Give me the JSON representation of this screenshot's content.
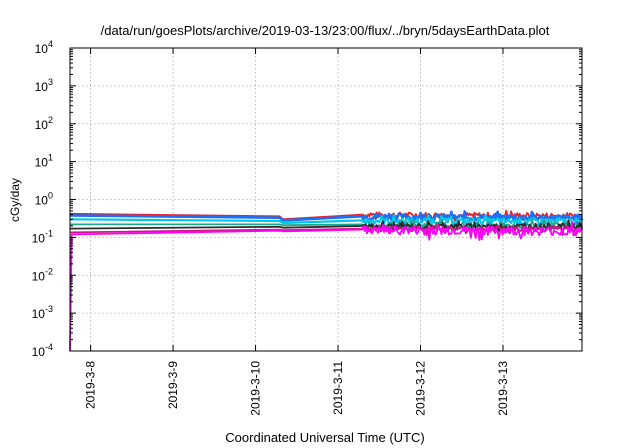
{
  "chart_data": {
    "type": "line",
    "title": "/data/run/goesPlots/archive/2019-03-13/23:00/flux/../bryn/5daysEarthData.plot",
    "xlabel": "Coordinated Universal Time (UTC)",
    "ylabel": "cGy/day",
    "y_scale": "log",
    "ylim": [
      0.0001,
      10000
    ],
    "yticks": [
      {
        "value": 0.0001,
        "base": "10",
        "exp": "-4"
      },
      {
        "value": 0.001,
        "base": "10",
        "exp": "-3"
      },
      {
        "value": 0.01,
        "base": "10",
        "exp": "-2"
      },
      {
        "value": 0.1,
        "base": "10",
        "exp": "-1"
      },
      {
        "value": 1,
        "base": "10",
        "exp": "0"
      },
      {
        "value": 10,
        "base": "10",
        "exp": "1"
      },
      {
        "value": 100,
        "base": "10",
        "exp": "2"
      },
      {
        "value": 1000,
        "base": "10",
        "exp": "3"
      },
      {
        "value": 10000,
        "base": "10",
        "exp": "4"
      }
    ],
    "xlim": [
      "2019-03-07T18:00",
      "2019-03-13T23:00"
    ],
    "xticks": [
      "2019-3-8",
      "2019-3-9",
      "2019-3-10",
      "2019-3-11",
      "2019-3-12",
      "2019-3-13"
    ],
    "grid": true,
    "legend": "none",
    "series": [
      {
        "color": "#e8212a",
        "x": [
          "2019-03-07T18:00",
          "2019-03-10T07:00",
          "2019-03-10T08:00",
          "2019-03-11T07:00",
          "2019-03-13T23:00"
        ],
        "values": [
          0.42,
          0.36,
          0.3,
          0.4,
          0.38
        ]
      },
      {
        "color": "#1e6ff2",
        "x": [
          "2019-03-07T18:00",
          "2019-03-10T07:00",
          "2019-03-10T08:00",
          "2019-03-11T07:00",
          "2019-03-13T23:00"
        ],
        "values": [
          0.38,
          0.33,
          0.28,
          0.36,
          0.33
        ]
      },
      {
        "color": "#00c8e6",
        "x": [
          "2019-03-07T18:00",
          "2019-03-10T07:00",
          "2019-03-10T08:00",
          "2019-03-11T07:00",
          "2019-03-13T23:00"
        ],
        "values": [
          0.3,
          0.27,
          0.24,
          0.28,
          0.27
        ]
      },
      {
        "color": "#1fa58e",
        "x": [
          "2019-03-07T18:00",
          "2019-03-10T07:00",
          "2019-03-10T08:00",
          "2019-03-11T07:00",
          "2019-03-13T23:00"
        ],
        "values": [
          0.22,
          0.22,
          0.21,
          0.22,
          0.21
        ]
      },
      {
        "color": "#2b2b2b",
        "x": [
          "2019-03-07T18:00",
          "2019-03-10T07:00",
          "2019-03-10T08:00",
          "2019-03-11T07:00",
          "2019-03-13T23:00"
        ],
        "values": [
          0.17,
          0.19,
          0.18,
          0.2,
          0.2
        ]
      },
      {
        "color": "#d2148c",
        "x": [
          "2019-03-07T18:00",
          "2019-03-10T07:00",
          "2019-03-10T08:00",
          "2019-03-11T07:00",
          "2019-03-13T23:00"
        ],
        "values": [
          0.135,
          0.16,
          0.155,
          0.17,
          0.17
        ]
      },
      {
        "color": "#ff00ff",
        "x": [
          "2019-03-07T18:00",
          "2019-03-07T18:30",
          "2019-03-10T07:00",
          "2019-03-10T08:00",
          "2019-03-11T07:00",
          "2019-03-13T23:00"
        ],
        "values": [
          0.0001,
          0.12,
          0.15,
          0.145,
          0.16,
          0.15
        ]
      }
    ]
  }
}
